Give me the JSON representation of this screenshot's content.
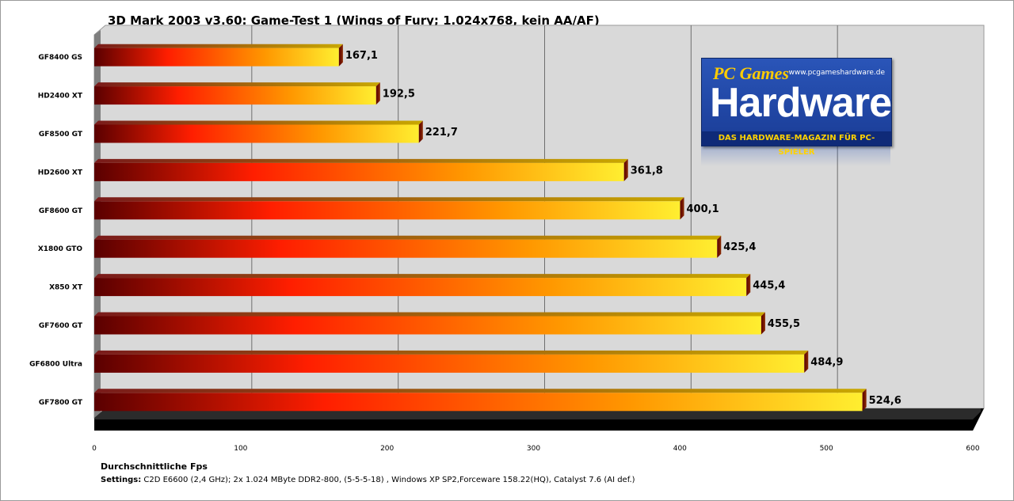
{
  "chart_data": {
    "type": "bar",
    "orientation": "horizontal",
    "title": "3D Mark 2003 v3.60: Game-Test 1 (Wings of Fury; 1.024x768, kein AA/AF)",
    "xlabel": "Durchschnittliche Fps",
    "ylabel": "",
    "xlim": [
      0,
      600
    ],
    "xticks": [
      0,
      100,
      200,
      300,
      400,
      500,
      600
    ],
    "grid": true,
    "categories": [
      "GF8400 GS",
      "HD2400 XT",
      "GF8500 GT",
      "HD2600 XT",
      "GF8600 GT",
      "X1800 GTO",
      "X850 XT",
      "GF7600 GT",
      "GF6800 Ultra",
      "GF7800 GT"
    ],
    "values": [
      167.1,
      192.5,
      221.7,
      361.8,
      400.1,
      425.4,
      445.4,
      455.5,
      484.9,
      524.6
    ],
    "value_labels": [
      "167,1",
      "192,5",
      "221,7",
      "361,8",
      "400,1",
      "425,4",
      "445,4",
      "455,5",
      "484,9",
      "524,6"
    ],
    "bar_gradient": [
      "#5a0000",
      "#ff1e00",
      "#ff9800",
      "#ffee30"
    ],
    "plot_background": "#d9d9d9"
  },
  "footer": {
    "settings_label": "Settings:",
    "settings_text": " C2D E6600 (2,4 GHz); 2x 1.024 MByte DDR2-800, (5-5-5-18) , Windows XP SP2,Forceware 158.22(HQ), Catalyst 7.6 (AI def.)"
  },
  "logo": {
    "brand_small": "PC Games",
    "brand_big": "Hardware",
    "url": "www.pcgameshardware.de",
    "tagline": "DAS HARDWARE-MAGAZIN FÜR PC-SPIELER"
  }
}
